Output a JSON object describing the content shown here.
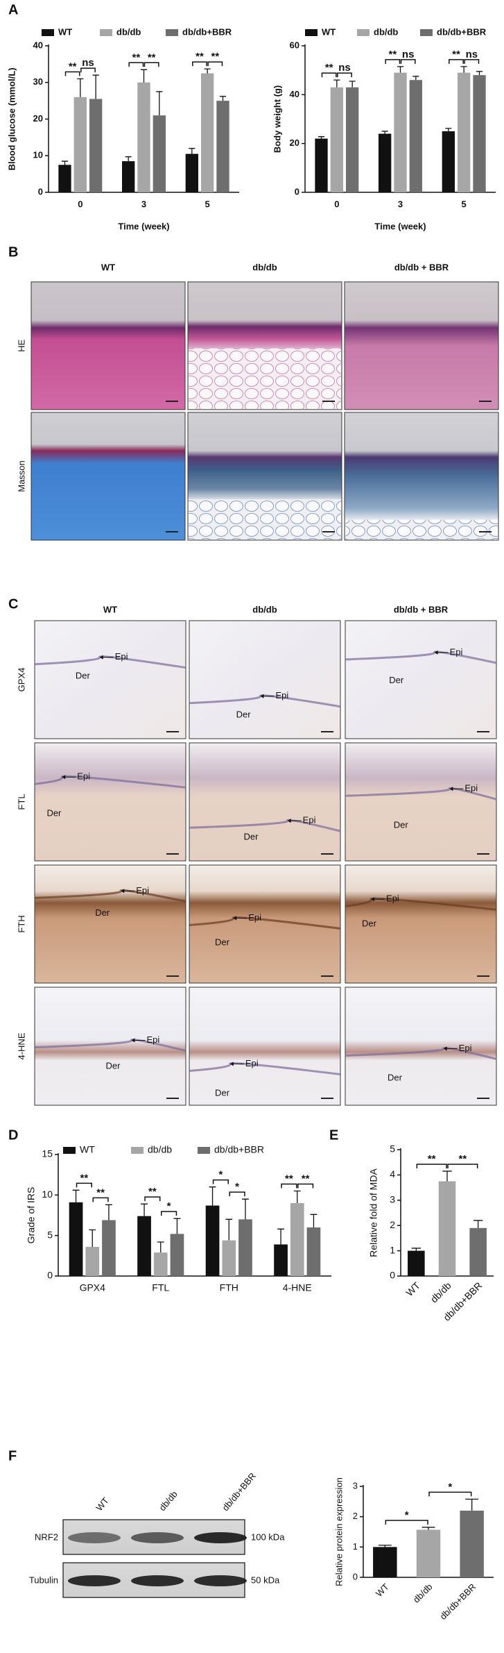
{
  "panel_labels": [
    "A",
    "B",
    "C",
    "D",
    "E",
    "F"
  ],
  "chart_data": [
    {
      "type": "bar",
      "y_label": "Blood glucose (mmol/L)",
      "x_label": "Time (week)",
      "categories": [
        "0",
        "3",
        "5"
      ],
      "ylim": [
        0,
        40
      ],
      "yticks": [
        0,
        10,
        20,
        30,
        40
      ],
      "series": [
        {
          "name": "WT",
          "color": "#111111",
          "values": [
            7.5,
            8.5,
            10.5
          ],
          "errors": [
            1.0,
            1.2,
            1.5
          ]
        },
        {
          "name": "db/db",
          "color": "#a6a6a6",
          "values": [
            26,
            30,
            32.5
          ],
          "errors": [
            5,
            3.5,
            1.2
          ]
        },
        {
          "name": "db/db+BBR",
          "color": "#6e6e6e",
          "values": [
            25.5,
            21,
            25
          ],
          "errors": [
            6.5,
            6.5,
            1.2
          ]
        }
      ],
      "annotations": [
        [
          "**",
          "ns"
        ],
        [
          "**",
          "**"
        ],
        [
          "**",
          "**"
        ]
      ]
    },
    {
      "type": "bar",
      "y_label": "Body weight (g)",
      "x_label": "Time (week)",
      "categories": [
        "0",
        "3",
        "5"
      ],
      "ylim": [
        0,
        60
      ],
      "yticks": [
        0,
        20,
        40,
        60
      ],
      "series": [
        {
          "name": "WT",
          "color": "#111111",
          "values": [
            22,
            24,
            25
          ],
          "errors": [
            0.8,
            1,
            1.2
          ]
        },
        {
          "name": "db/db",
          "color": "#a6a6a6",
          "values": [
            43,
            49,
            49
          ],
          "errors": [
            3,
            2.5,
            2.5
          ]
        },
        {
          "name": "db/db+BBR",
          "color": "#6e6e6e",
          "values": [
            43,
            46,
            48
          ],
          "errors": [
            2.5,
            1.5,
            1.5
          ]
        }
      ],
      "annotations": [
        [
          "**",
          "ns"
        ],
        [
          "**",
          "ns"
        ],
        [
          "**",
          "ns"
        ]
      ]
    },
    {
      "type": "bar",
      "y_label": "Grade of IRS",
      "categories": [
        "GPX4",
        "FTL",
        "FTH",
        "4-HNE"
      ],
      "ylim": [
        0,
        15
      ],
      "yticks": [
        0,
        5,
        10,
        15
      ],
      "series": [
        {
          "name": "WT",
          "color": "#111111",
          "values": [
            9.1,
            7.4,
            8.7,
            3.9
          ],
          "errors": [
            1.5,
            1.5,
            2.3,
            1.9
          ]
        },
        {
          "name": "db/db",
          "color": "#a6a6a6",
          "values": [
            3.6,
            2.9,
            4.4,
            9.0
          ],
          "errors": [
            2.1,
            1.3,
            2.6,
            1.5
          ]
        },
        {
          "name": "db/db+BBR",
          "color": "#6e6e6e",
          "values": [
            6.9,
            5.2,
            7.0,
            6.0
          ],
          "errors": [
            1.9,
            1.9,
            2.5,
            1.6
          ]
        }
      ],
      "annotations": [
        [
          "**",
          "**"
        ],
        [
          "**",
          "*"
        ],
        [
          "*",
          "*"
        ],
        [
          "**",
          "**"
        ]
      ]
    },
    {
      "type": "bar",
      "y_label": "Relative fold of MDA",
      "categories": [
        "WT",
        "db/db",
        "db/db+BBR"
      ],
      "values": [
        1.0,
        3.75,
        1.9
      ],
      "errors": [
        0.1,
        0.4,
        0.3
      ],
      "colors": [
        "#111111",
        "#a6a6a6",
        "#6e6e6e"
      ],
      "ylim": [
        0,
        5
      ],
      "yticks": [
        0,
        1,
        2,
        3,
        4,
        5
      ],
      "annotations": [
        "**",
        "**"
      ]
    },
    {
      "type": "bar",
      "y_label": "Relative protein expression",
      "categories": [
        "WT",
        "db/db",
        "db/db+BBR"
      ],
      "values": [
        1.0,
        1.57,
        2.2
      ],
      "errors": [
        0.06,
        0.08,
        0.38
      ],
      "colors": [
        "#111111",
        "#a6a6a6",
        "#6e6e6e"
      ],
      "ylim": [
        0,
        3
      ],
      "yticks": [
        0,
        1,
        2,
        3
      ],
      "annotations": [
        "*",
        "*"
      ]
    }
  ],
  "he_masson": {
    "columns": [
      "WT",
      "db/db",
      "db/db + BBR"
    ],
    "rows": [
      "HE",
      "Masson"
    ]
  },
  "ihc": {
    "columns": [
      "WT",
      "db/db",
      "db/db + BBR"
    ],
    "rows": [
      "GPX4",
      "FTL",
      "FTH",
      "4-HNE"
    ],
    "annotations": [
      [
        [
          "Epi",
          "Der"
        ],
        [
          "Epi",
          "Der"
        ],
        [
          "Epi",
          "Der"
        ]
      ],
      [
        [
          "Epi",
          "Der"
        ],
        [
          "Epi",
          "Der"
        ],
        [
          "Epi",
          "Der"
        ]
      ],
      [
        [
          "Epi",
          "Der"
        ],
        [
          "Epi",
          "Der"
        ],
        [
          "Epi",
          "Der"
        ]
      ],
      [
        [
          "Epi",
          "Der"
        ],
        [
          "Epi",
          "Der"
        ],
        [
          "Epi",
          "Der"
        ]
      ]
    ]
  },
  "western_blot": {
    "lanes": [
      "WT",
      "db/db",
      "db/db+BBR"
    ],
    "bands": [
      {
        "name": "NRF2",
        "size": "100 kDa"
      },
      {
        "name": "Tubulin",
        "size": "50 kDa"
      }
    ]
  }
}
